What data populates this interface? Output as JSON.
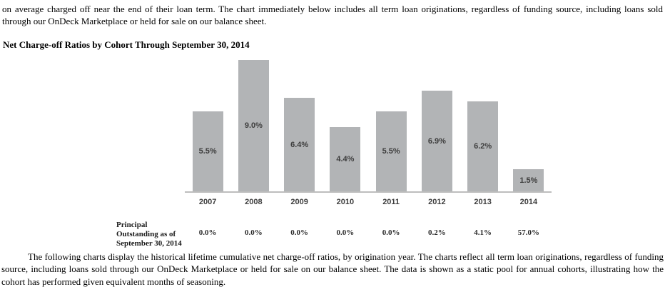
{
  "paragraphs": {
    "top": "on average charged off near the end of their loan term. The chart immediately below includes all term loan originations, regardless of funding source, including loans sold through our OnDeck Marketplace or held for sale on our balance sheet.",
    "bottom": "The following charts display the historical lifetime cumulative net charge-off ratios, by origination year. The charts reflect all term loan originations, regardless of funding source, including loans sold through our OnDeck Marketplace or held for sale on our balance sheet. The data is shown as a static pool for annual cohorts, illustrating how the cohort has performed given equivalent months of seasoning."
  },
  "heading": "Net Charge-off Ratios by Cohort Through September 30, 2014",
  "chart_data": {
    "type": "bar",
    "title": "Net Charge-off Ratios by Cohort Through September 30, 2014",
    "categories": [
      "2007",
      "2008",
      "2009",
      "2010",
      "2011",
      "2012",
      "2013",
      "2014"
    ],
    "values": [
      5.5,
      9.0,
      6.4,
      4.4,
      5.5,
      6.9,
      6.2,
      1.5
    ],
    "bar_labels": [
      "5.5%",
      "9.0%",
      "6.4%",
      "4.4%",
      "5.5%",
      "6.9%",
      "6.2%",
      "1.5%"
    ],
    "unit": "percent",
    "xlabel": "",
    "ylabel": "",
    "ylim": [
      0,
      9.2
    ],
    "bar_color": "#b2b4b6",
    "axis_line_color": "#bdbdbd",
    "label_position": "inside-center",
    "grid": false,
    "legend": false
  },
  "principal_row": {
    "label": "Principal Outstanding as of September 30, 2014",
    "values": [
      "0.0%",
      "0.0%",
      "0.0%",
      "0.0%",
      "0.0%",
      "0.2%",
      "4.1%",
      "57.0%"
    ]
  }
}
